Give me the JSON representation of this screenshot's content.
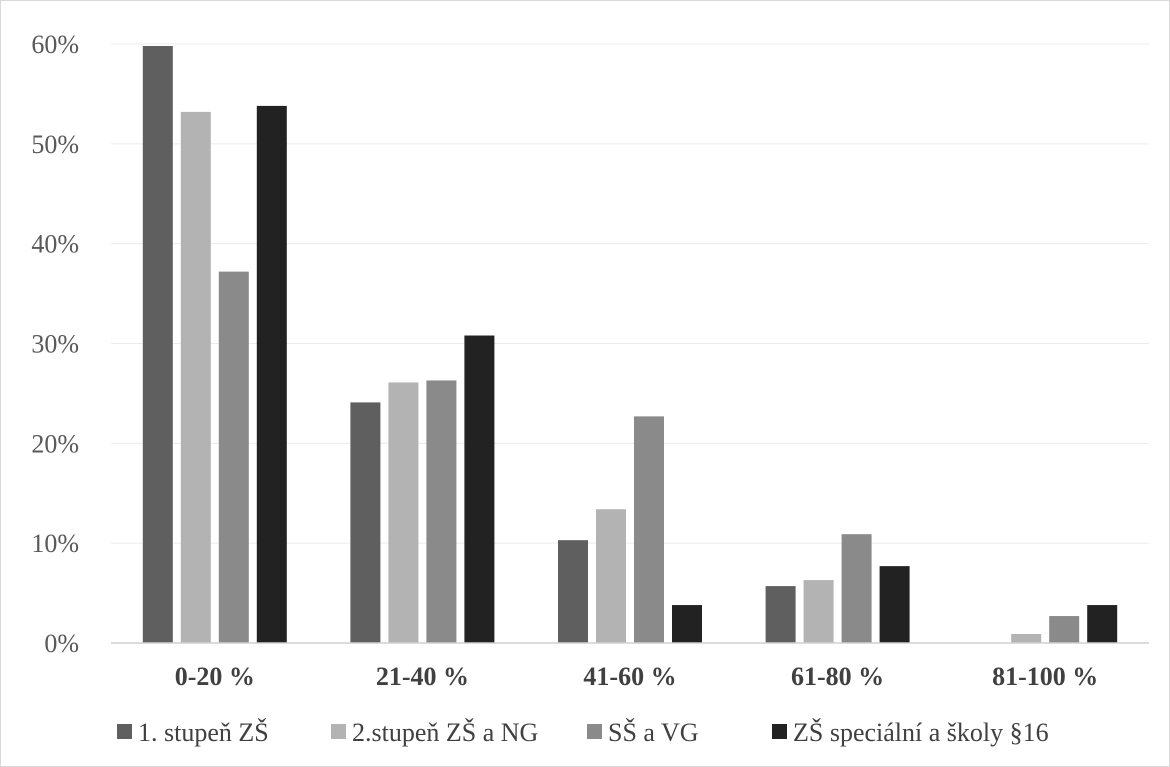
{
  "chart_data": {
    "type": "bar",
    "title": "",
    "xlabel": "",
    "ylabel": "",
    "categories": [
      "0-20 %",
      "21-40 %",
      "41-60 %",
      "61-80 %",
      "81-100 %"
    ],
    "series": [
      {
        "name": "1. stupeň ZŠ",
        "color": "#5f5f5f",
        "values": [
          0.598,
          0.241,
          0.103,
          0.057,
          0.0
        ]
      },
      {
        "name": "2.stupeň ZŠ a NG",
        "color": "#b3b3b3",
        "values": [
          0.532,
          0.261,
          0.134,
          0.063,
          0.009
        ]
      },
      {
        "name": "SŠ a VG",
        "color": "#8a8a8a",
        "values": [
          0.372,
          0.263,
          0.227,
          0.109,
          0.027
        ]
      },
      {
        "name": "ZŠ speciální a školy §16",
        "color": "#222222",
        "values": [
          0.538,
          0.308,
          0.038,
          0.077,
          0.038
        ]
      }
    ],
    "ylim": [
      0,
      0.6
    ],
    "yticks": [
      "0%",
      "10%",
      "20%",
      "30%",
      "40%",
      "50%",
      "60%"
    ],
    "grid": true,
    "legend": "bottom"
  }
}
